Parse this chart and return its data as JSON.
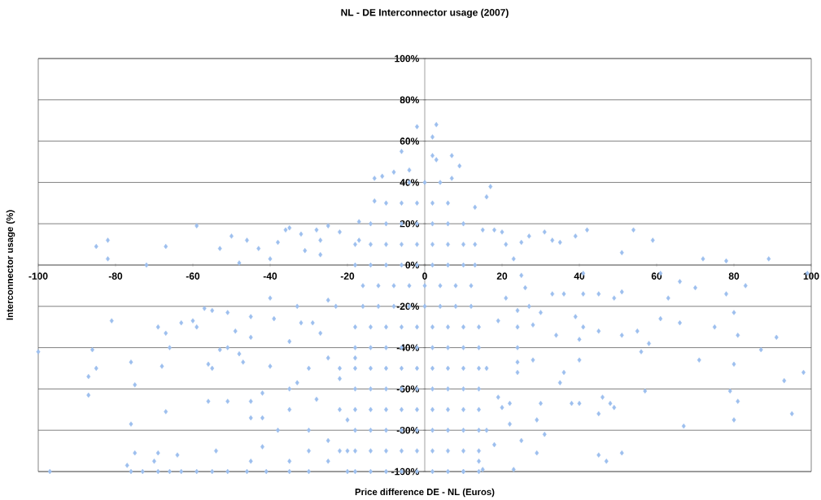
{
  "chart_data": {
    "type": "scatter",
    "title": "NL - DE Interconnector usage (2007)",
    "xlabel": "Price difference DE - NL (Euros)",
    "ylabel": "Interconnector usage (%)",
    "color": "#9dbfee",
    "marker": "diamond",
    "grid": "y",
    "xlim": [
      -100,
      100
    ],
    "ylim": [
      -100,
      100
    ],
    "xticks": [
      -100,
      -80,
      -60,
      -40,
      -20,
      0,
      20,
      40,
      60,
      80,
      100
    ],
    "yticks": [
      {
        "value": -100,
        "label": "-100%"
      },
      {
        "value": -80,
        "label": "-80%"
      },
      {
        "value": -60,
        "label": "-60%"
      },
      {
        "value": -40,
        "label": "-40%"
      },
      {
        "value": -20,
        "label": "-20%"
      },
      {
        "value": 0,
        "label": "0%"
      },
      {
        "value": 20,
        "label": "20%"
      },
      {
        "value": 40,
        "label": "40%"
      },
      {
        "value": 60,
        "label": "60%"
      },
      {
        "value": 80,
        "label": "80%"
      },
      {
        "value": 100,
        "label": "100%"
      }
    ],
    "x": [
      -85,
      -82,
      -82,
      -72,
      -67,
      -59,
      -53,
      -50,
      -46,
      -43,
      -48,
      -40,
      -38,
      -36,
      -35,
      -32,
      -31,
      -28,
      -25,
      -27,
      -27,
      -17,
      -13,
      -11,
      -8,
      -6,
      -2,
      -4,
      -13,
      -22,
      -17,
      3,
      2,
      2,
      7,
      3,
      9,
      7,
      17,
      16,
      13,
      15,
      18,
      20,
      21,
      23,
      25,
      27,
      31,
      33,
      35,
      39,
      42,
      51,
      54,
      59,
      72,
      78,
      89,
      99,
      -100,
      -97,
      -86,
      -85,
      -87,
      -87,
      -81,
      -76,
      -75,
      -76,
      -75,
      -77,
      -69,
      -67,
      -66,
      -68,
      -67,
      -69,
      -70,
      -64,
      -63,
      -60,
      -59,
      -57,
      -55,
      -56,
      -55,
      -56,
      -51,
      -53,
      -51,
      -51,
      -54,
      -49,
      -48,
      -47,
      -45,
      -45,
      -45,
      -45,
      -42,
      -40,
      -39,
      -40,
      -33,
      -35,
      -33,
      -32,
      -29,
      -27,
      -25,
      -23,
      -42,
      -76,
      -73,
      -69,
      -66,
      -63,
      -59,
      -55,
      -51,
      -46,
      -41,
      -35,
      -30,
      -25,
      -20,
      -30,
      -35,
      -25,
      -20,
      -28,
      -22,
      -18,
      -25,
      -30,
      -35,
      -38,
      -42,
      -45,
      -20,
      -30,
      -35,
      41,
      61,
      66,
      70,
      83,
      78,
      33,
      36,
      41,
      45,
      49,
      51,
      63,
      39,
      41,
      40,
      34,
      45,
      51,
      55,
      61,
      66,
      75,
      80,
      81,
      91,
      58,
      56,
      87,
      71,
      80,
      40,
      28,
      36,
      35,
      98,
      93,
      57,
      79,
      81,
      46,
      48,
      49,
      40,
      38,
      30,
      45,
      29,
      95,
      80,
      67,
      31,
      29,
      45,
      47,
      51,
      23,
      15,
      10,
      22,
      25,
      18,
      14,
      30,
      28,
      24,
      24,
      24,
      24,
      22,
      20,
      19,
      24,
      27,
      25,
      26,
      21,
      19,
      -4,
      0,
      4,
      -10,
      -6,
      -2,
      2,
      6,
      -14,
      -10,
      -6,
      -2,
      2,
      6,
      10,
      -18,
      -14,
      -10,
      -6,
      -2,
      2,
      6,
      10,
      13,
      -18,
      -14,
      -10,
      -6,
      -2,
      2,
      6,
      10,
      13,
      -16,
      -12,
      -8,
      -4,
      0,
      4,
      8,
      12,
      -16,
      -12,
      -8,
      -4,
      0,
      4,
      8,
      12,
      -18,
      -14,
      -10,
      -6,
      -2,
      2,
      6,
      10,
      14,
      -18,
      -14,
      -10,
      -6,
      -2,
      2,
      6,
      10,
      14,
      -18,
      -14,
      -10,
      -6,
      -2,
      2,
      6,
      10,
      14,
      -18,
      -14,
      -10,
      -6,
      -2,
      2,
      6,
      10,
      14,
      -18,
      -14,
      -10,
      -6,
      -2,
      2,
      6,
      10,
      14,
      -18,
      -14,
      -10,
      -6,
      -2,
      2,
      6,
      10,
      14,
      -18,
      -14,
      -10,
      -6,
      -2,
      2,
      6,
      10,
      14,
      -18,
      -14,
      -10,
      -6,
      -2,
      2,
      6,
      10,
      14,
      -22,
      -22,
      -22,
      16,
      16
    ],
    "values": [
      9,
      12,
      3,
      0,
      9,
      19,
      8,
      14,
      12,
      8,
      1,
      3,
      11,
      17,
      18,
      15,
      7,
      17,
      19,
      12,
      5,
      21,
      42,
      43,
      45,
      55,
      67,
      46,
      31,
      16,
      12,
      68,
      62,
      53,
      53,
      51,
      48,
      42,
      38,
      33,
      28,
      17,
      17,
      16,
      10,
      3,
      11,
      14,
      16,
      12,
      11,
      14,
      17,
      6,
      17,
      12,
      3,
      2,
      3,
      -4,
      -42,
      -100,
      -41,
      -50,
      -54,
      -63,
      -27,
      -47,
      -58,
      -77,
      -91,
      -97,
      -30,
      -33,
      -40,
      -49,
      -71,
      -91,
      -95,
      -92,
      -28,
      -27,
      -30,
      -21,
      -22,
      -48,
      -50,
      -66,
      -23,
      -41,
      -40,
      -66,
      -90,
      -32,
      -43,
      -47,
      -25,
      -35,
      -66,
      -74,
      -62,
      -49,
      -26,
      -16,
      -20,
      -37,
      -57,
      -28,
      -28,
      -33,
      -17,
      -20,
      -74,
      -100,
      -100,
      -100,
      -100,
      -100,
      -100,
      -100,
      -100,
      -100,
      -100,
      -70,
      -80,
      -85,
      -75,
      -90,
      -95,
      -95,
      -90,
      -65,
      -55,
      -45,
      -45,
      -50,
      -60,
      -80,
      -88,
      -95,
      -100,
      -100,
      -100,
      -4,
      -4,
      -8,
      -11,
      -10,
      -14,
      -14,
      -14,
      -14,
      -14,
      -16,
      -13,
      -16,
      -25,
      -30,
      -36,
      -34,
      -32,
      -34,
      -32,
      -26,
      -28,
      -30,
      -23,
      -34,
      -35,
      -38,
      -42,
      -41,
      -46,
      -48,
      -46,
      -46,
      -52,
      -57,
      -52,
      -56,
      -61,
      -61,
      -66,
      -64,
      -67,
      -69,
      -67,
      -67,
      -67,
      -72,
      -75,
      -72,
      -75,
      -78,
      -82,
      -91,
      -92,
      -95,
      -91,
      -99,
      -99,
      -100,
      -77,
      -85,
      -87,
      -95,
      -23,
      -29,
      -30,
      -40,
      -47,
      -52,
      -67,
      -69,
      -64,
      -22,
      -20,
      -5,
      -11,
      -16,
      -27,
      40,
      40,
      40,
      30,
      30,
      30,
      30,
      30,
      20,
      20,
      20,
      20,
      20,
      20,
      20,
      10,
      10,
      10,
      10,
      10,
      10,
      10,
      10,
      10,
      0,
      0,
      0,
      0,
      0,
      0,
      0,
      0,
      0,
      -10,
      -10,
      -10,
      -10,
      -10,
      -10,
      -10,
      -10,
      -20,
      -20,
      -20,
      -20,
      -20,
      -20,
      -20,
      -20,
      -30,
      -30,
      -30,
      -30,
      -30,
      -30,
      -30,
      -30,
      -30,
      -40,
      -40,
      -40,
      -40,
      -40,
      -40,
      -40,
      -40,
      -40,
      -50,
      -50,
      -50,
      -50,
      -50,
      -50,
      -50,
      -50,
      -50,
      -60,
      -60,
      -60,
      -60,
      -60,
      -60,
      -60,
      -60,
      -60,
      -70,
      -70,
      -70,
      -70,
      -70,
      -70,
      -70,
      -70,
      -70,
      -80,
      -80,
      -80,
      -80,
      -80,
      -80,
      -80,
      -80,
      -80,
      -90,
      -90,
      -90,
      -90,
      -90,
      -90,
      -90,
      -90,
      -90,
      -100,
      -100,
      -100,
      -100,
      -100,
      -100,
      -100,
      -100,
      -100,
      -50,
      -70,
      -90,
      -50,
      -80
    ]
  }
}
